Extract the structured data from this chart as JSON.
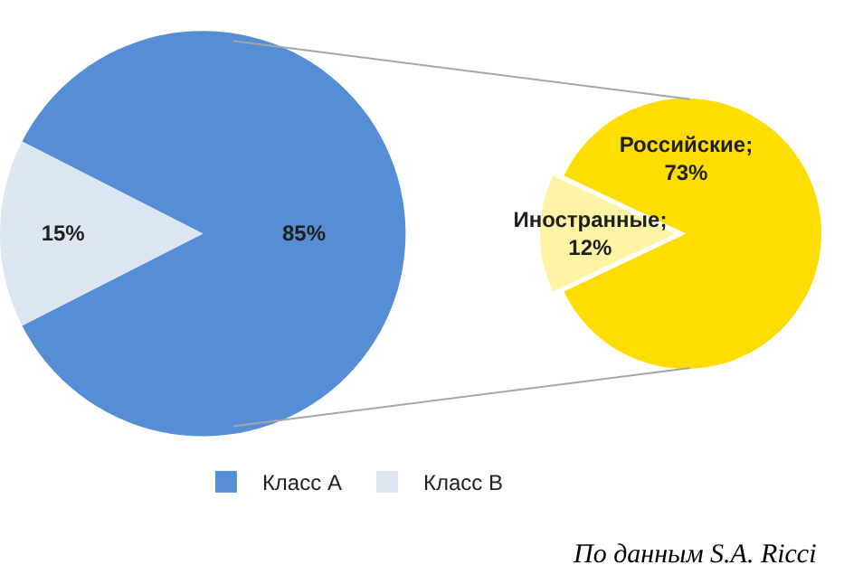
{
  "chart_data": [
    {
      "type": "pie",
      "categories": [
        "Класс A",
        "Класс B"
      ],
      "values": [
        85,
        15
      ],
      "colors": [
        "#558ed5",
        "#dce6f2"
      ],
      "value_labels": [
        "85%",
        "15%"
      ],
      "legend": "bottom"
    },
    {
      "type": "pie",
      "categories": [
        null,
        null
      ],
      "values": [
        73,
        12
      ],
      "colors": [
        "#ffdd00",
        "#fff3a6"
      ],
      "value_labels": [
        "Российские;\n73%",
        "Иностранные;\n12%"
      ],
      "legend": false,
      "annotations": [
        "По данным S.A. Ricci"
      ]
    }
  ]
}
